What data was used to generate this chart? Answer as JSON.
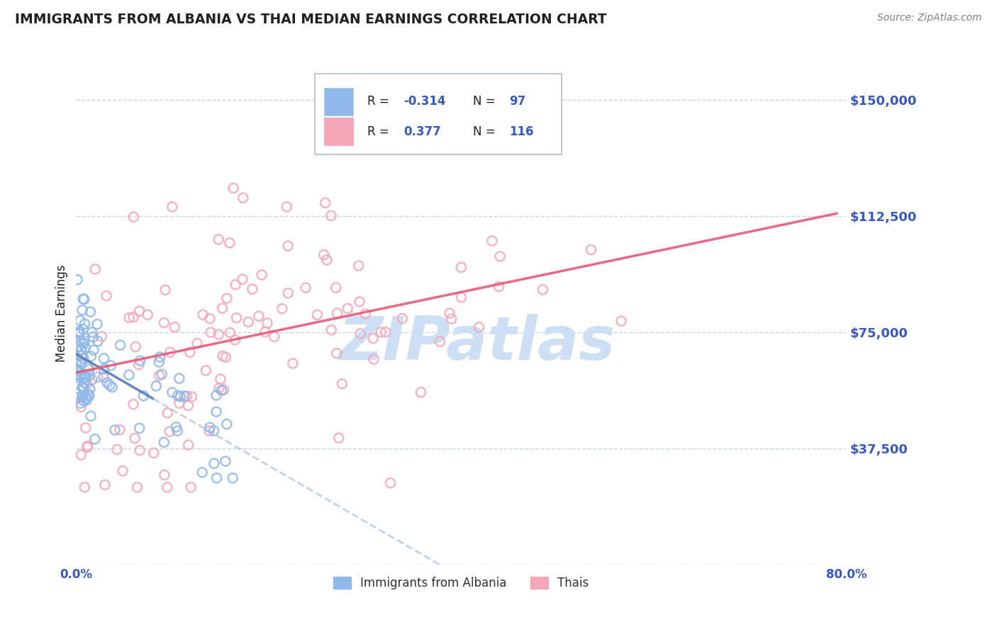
{
  "title": "IMMIGRANTS FROM ALBANIA VS THAI MEDIAN EARNINGS CORRELATION CHART",
  "source": "Source: ZipAtlas.com",
  "ylabel": "Median Earnings",
  "xlim": [
    0.0,
    80.0
  ],
  "ylim": [
    0,
    162500
  ],
  "yticks": [
    0,
    37500,
    75000,
    112500,
    150000
  ],
  "ytick_labels": [
    "",
    "$37,500",
    "$75,000",
    "$112,500",
    "$150,000"
  ],
  "xtick_labels": [
    "0.0%",
    "80.0%"
  ],
  "albania_color": "#90b8e8",
  "albania_edge_color": "#7090d0",
  "thai_color": "#f4a8b8",
  "thai_edge_color": "#e07890",
  "albania_line_color": "#5878b8",
  "albania_dash_color": "#a8c0e0",
  "thai_line_color": "#e85878",
  "tick_label_color": "#3858c0",
  "legend_r_color": "#3858c0",
  "legend_n_label_color": "#202020",
  "watermark": "ZIPatlas",
  "watermark_color": "#ccdff5",
  "background_color": "#ffffff",
  "grid_color": "#c8d4e8",
  "title_color": "#202020",
  "axis_label_color": "#202020",
  "source_color": "#808080"
}
